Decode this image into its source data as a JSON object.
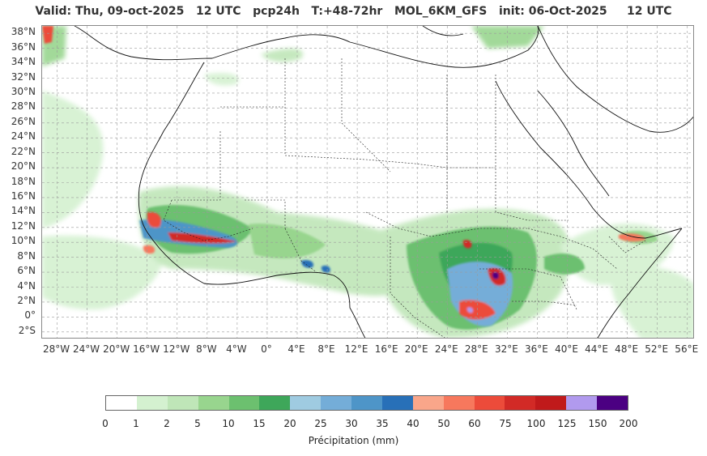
{
  "title": "Valid: Thu, 09-oct-2025   12 UTC   pcp24h   T:+48-72hr   MOL_6KM_GFS   init: 06-Oct-2025     12 UTC",
  "lat_labels": [
    "38°N",
    "36°N",
    "34°N",
    "32°N",
    "30°N",
    "28°N",
    "26°N",
    "24°N",
    "22°N",
    "20°N",
    "18°N",
    "16°N",
    "14°N",
    "12°N",
    "10°N",
    "8°N",
    "6°N",
    "4°N",
    "2°N",
    "0°",
    "2°S"
  ],
  "lon_labels": [
    "28°W",
    "24°W",
    "20°W",
    "16°W",
    "12°W",
    "8°W",
    "4°W",
    "0°",
    "4°E",
    "8°E",
    "12°E",
    "16°E",
    "20°E",
    "24°E",
    "28°E",
    "32°E",
    "36°E",
    "40°E",
    "44°E",
    "48°E",
    "52°E",
    "56°E"
  ],
  "colorbar": {
    "label": "Précipitation (mm)",
    "ticks": [
      "0",
      "1",
      "2",
      "5",
      "10",
      "15",
      "20",
      "25",
      "30",
      "35",
      "40",
      "50",
      "60",
      "75",
      "100",
      "125",
      "150",
      "200"
    ],
    "colors": [
      "#ffffff",
      "#d4f1d0",
      "#bfe6b8",
      "#98d58e",
      "#6cc06f",
      "#3ea75a",
      "#9fcbe1",
      "#74add8",
      "#4e95c8",
      "#2870b8",
      "#f9a68a",
      "#f7785d",
      "#ec4b3a",
      "#d22a26",
      "#c01a1b",
      "#b19aee",
      "#4b0082"
    ]
  },
  "map": {
    "projection_extent": {
      "lon": [
        -30,
        57
      ],
      "lat": [
        -3,
        39
      ]
    },
    "grid": true
  }
}
